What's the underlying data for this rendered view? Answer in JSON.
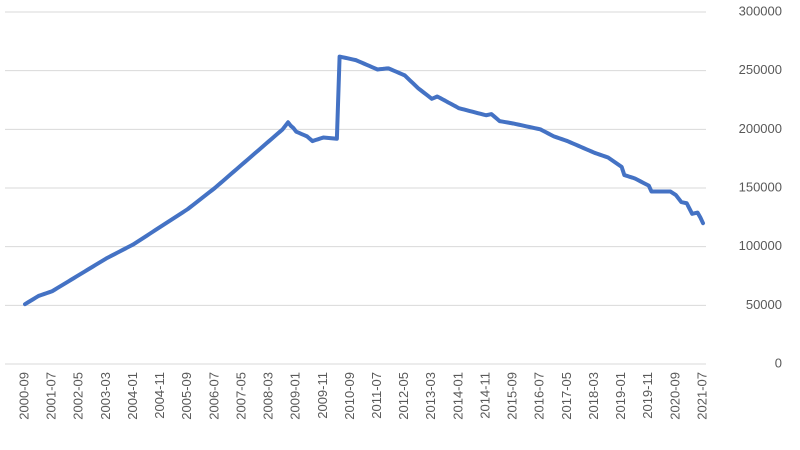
{
  "chart_data": {
    "type": "line",
    "categories": [
      "2000-09",
      null,
      null,
      null,
      null,
      null,
      null,
      null,
      null,
      null,
      "2001-07",
      null,
      null,
      null,
      null,
      null,
      null,
      null,
      null,
      null,
      "2002-05",
      null,
      null,
      null,
      null,
      null,
      null,
      null,
      null,
      null,
      "2003-03",
      null,
      null,
      null,
      null,
      null,
      null,
      null,
      null,
      null,
      "2004-01",
      null,
      null,
      null,
      null,
      null,
      null,
      null,
      null,
      null,
      "2004-11",
      null,
      null,
      null,
      null,
      null,
      null,
      null,
      null,
      null,
      "2005-09",
      null,
      null,
      null,
      null,
      null,
      null,
      null,
      null,
      null,
      "2006-07",
      null,
      null,
      null,
      null,
      null,
      null,
      null,
      null,
      null,
      "2007-05",
      null,
      null,
      null,
      null,
      null,
      null,
      null,
      null,
      null,
      "2008-03",
      null,
      null,
      null,
      null,
      null,
      null,
      null,
      null,
      null,
      "2009-01",
      null,
      null,
      null,
      null,
      null,
      null,
      null,
      null,
      null,
      "2009-11",
      null,
      null,
      null,
      null,
      null,
      null,
      null,
      null,
      null,
      "2010-09",
      null,
      null,
      null,
      null,
      null,
      null,
      null,
      null,
      null,
      "2011-07",
      null,
      null,
      null,
      null,
      null,
      null,
      null,
      null,
      null,
      "2012-05",
      null,
      null,
      null,
      null,
      null,
      null,
      null,
      null,
      null,
      "2013-03",
      null,
      null,
      null,
      null,
      null,
      null,
      null,
      null,
      null,
      "2014-01",
      null,
      null,
      null,
      null,
      null,
      null,
      null,
      null,
      null,
      "2014-11",
      null,
      null,
      null,
      null,
      null,
      null,
      null,
      null,
      null,
      "2015-09",
      null,
      null,
      null,
      null,
      null,
      null,
      null,
      null,
      null,
      "2016-07",
      null,
      null,
      null,
      null,
      null,
      null,
      null,
      null,
      null,
      "2017-05",
      null,
      null,
      null,
      null,
      null,
      null,
      null,
      null,
      null,
      "2018-03",
      null,
      null,
      null,
      null,
      null,
      null,
      null,
      null,
      null,
      "2019-01",
      null,
      null,
      null,
      null,
      null,
      null,
      null,
      null,
      null,
      "2019-11",
      null,
      null,
      null,
      null,
      null,
      null,
      null,
      null,
      null,
      "2020-09",
      null,
      null,
      null,
      null,
      null,
      null,
      null,
      null,
      null,
      "2021-07"
    ],
    "values": [
      51000,
      52400,
      53800,
      55200,
      56600,
      58000,
      58800,
      59600,
      60400,
      61200,
      62000,
      63400,
      64800,
      66200,
      67600,
      69000,
      70400,
      71800,
      73200,
      74600,
      76000,
      77400,
      78800,
      80200,
      81600,
      83000,
      84400,
      85800,
      87200,
      88600,
      90000,
      91200,
      92400,
      93600,
      94800,
      96000,
      97200,
      98400,
      99600,
      100800,
      102000,
      103500,
      105000,
      106500,
      108000,
      109500,
      111000,
      112500,
      114000,
      115500,
      117000,
      118500,
      120000,
      121500,
      123000,
      124500,
      126000,
      127500,
      129000,
      130500,
      132000,
      133800,
      135600,
      137400,
      139200,
      141000,
      142800,
      144600,
      146400,
      148200,
      150000,
      152000,
      154000,
      156000,
      158000,
      160000,
      162000,
      164000,
      166000,
      168000,
      170000,
      172000,
      174000,
      176000,
      178000,
      180000,
      182000,
      184000,
      186000,
      188000,
      190000,
      192000,
      194000,
      196000,
      198000,
      200000,
      203000,
      206000,
      203000,
      201000,
      198000,
      197000,
      196000,
      195000,
      194000,
      192000,
      190000,
      190800,
      191500,
      192300,
      193000,
      192800,
      192600,
      192400,
      192200,
      192000,
      262000,
      261500,
      261000,
      260500,
      260000,
      259500,
      259000,
      258000,
      257000,
      256000,
      255000,
      254000,
      253000,
      252000,
      251000,
      251300,
      251500,
      251800,
      252000,
      251000,
      250000,
      249000,
      248000,
      247000,
      246000,
      243800,
      241600,
      239400,
      237200,
      235000,
      233200,
      231400,
      229600,
      227800,
      226000,
      227000,
      228000,
      226800,
      225500,
      224300,
      223000,
      221800,
      220500,
      219300,
      218000,
      217400,
      216800,
      216200,
      215600,
      215000,
      214400,
      213800,
      213200,
      212600,
      212000,
      212500,
      213000,
      211000,
      209000,
      207000,
      206600,
      206200,
      205800,
      205400,
      205000,
      204500,
      204000,
      203500,
      203000,
      202500,
      202000,
      201500,
      201000,
      200500,
      200000,
      198800,
      197600,
      196400,
      195200,
      194000,
      193200,
      192400,
      191600,
      190800,
      190000,
      189000,
      188000,
      187000,
      186000,
      185000,
      184000,
      183000,
      182000,
      181000,
      180000,
      179200,
      178400,
      177600,
      176800,
      176000,
      174400,
      172800,
      171200,
      169600,
      168000,
      161000,
      160300,
      159500,
      158800,
      158000,
      156800,
      155600,
      154400,
      153200,
      152000,
      147000,
      147000,
      147000,
      147000,
      147000,
      147000,
      147000,
      147000,
      145500,
      144000,
      141000,
      138000,
      137500,
      137000,
      132500,
      128000,
      128500,
      129000,
      125000,
      120000
    ],
    "color": "#4472c4",
    "ylim": [
      0,
      300000
    ],
    "yticks": [
      0,
      50000,
      100000,
      150000,
      200000,
      250000,
      300000
    ],
    "grid": true,
    "y_axis_side": "right"
  }
}
